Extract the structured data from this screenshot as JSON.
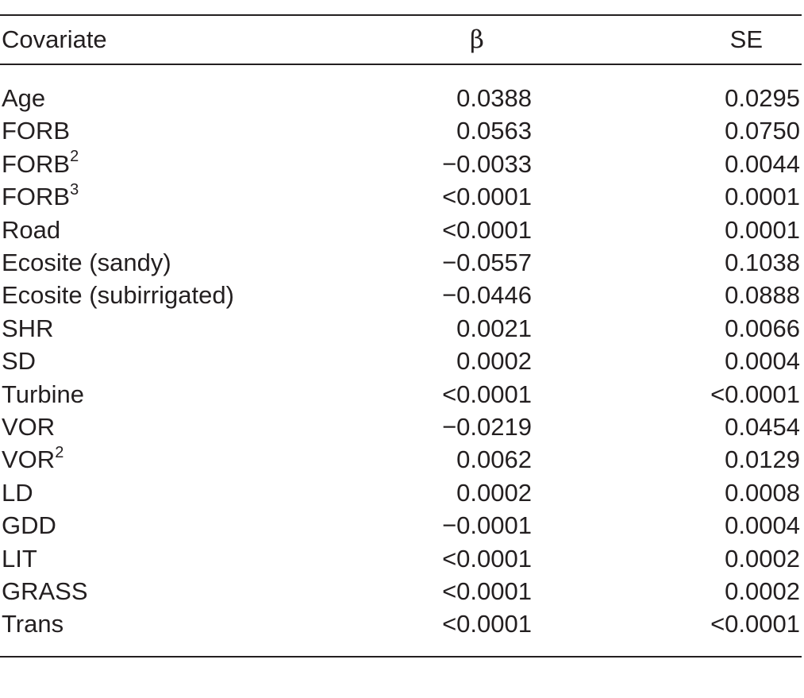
{
  "table": {
    "headers": {
      "covariate": "Covariate",
      "beta": "β",
      "se": "SE"
    },
    "rows": [
      {
        "name": "Age",
        "sup": "",
        "beta": "0.0388",
        "se": "0.0295"
      },
      {
        "name": "FORB",
        "sup": "",
        "beta": "0.0563",
        "se": "0.0750"
      },
      {
        "name": "FORB",
        "sup": "2",
        "beta": "−0.0033",
        "se": "0.0044"
      },
      {
        "name": "FORB",
        "sup": "3",
        "beta": "<0.0001",
        "se": "0.0001"
      },
      {
        "name": "Road",
        "sup": "",
        "beta": "<0.0001",
        "se": "0.0001"
      },
      {
        "name": "Ecosite (sandy)",
        "sup": "",
        "beta": "−0.0557",
        "se": "0.1038"
      },
      {
        "name": "Ecosite (subirrigated)",
        "sup": "",
        "beta": "−0.0446",
        "se": "0.0888"
      },
      {
        "name": "SHR",
        "sup": "",
        "beta": "0.0021",
        "se": "0.0066"
      },
      {
        "name": "SD",
        "sup": "",
        "beta": "0.0002",
        "se": "0.0004"
      },
      {
        "name": "Turbine",
        "sup": "",
        "beta": "<0.0001",
        "se": "<0.0001"
      },
      {
        "name": "VOR",
        "sup": "",
        "beta": "−0.0219",
        "se": "0.0454"
      },
      {
        "name": "VOR",
        "sup": "2",
        "beta": "0.0062",
        "se": "0.0129"
      },
      {
        "name": "LD",
        "sup": "",
        "beta": "0.0002",
        "se": "0.0008"
      },
      {
        "name": "GDD",
        "sup": "",
        "beta": "−0.0001",
        "se": "0.0004"
      },
      {
        "name": "LIT",
        "sup": "",
        "beta": "<0.0001",
        "se": "0.0002"
      },
      {
        "name": "GRASS",
        "sup": "",
        "beta": "<0.0001",
        "se": "0.0002"
      },
      {
        "name": "Trans",
        "sup": "",
        "beta": "<0.0001",
        "se": "<0.0001"
      }
    ]
  }
}
